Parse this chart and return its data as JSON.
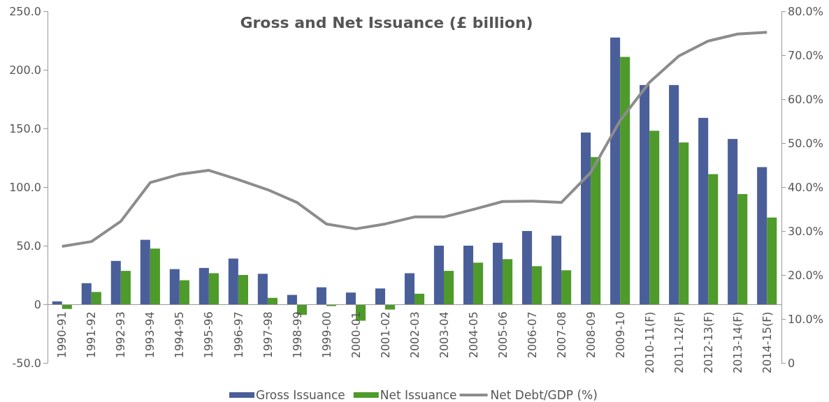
{
  "chart_data": {
    "type": "bar",
    "title": "Gross and Net Issuance (£ billion)",
    "categories": [
      "1990-91",
      "1991-92",
      "1992-93",
      "1993-94",
      "1994-95",
      "1995-96",
      "1996-97",
      "1997-98",
      "1998-99",
      "1999-00",
      "2000-01",
      "2001-02",
      "2002-03",
      "2003-04",
      "2004-05",
      "2005-06",
      "2006-07",
      "2007-08",
      "2008-09",
      "2009-10",
      "2010-11(F)",
      "2011-12(F)",
      "2012-13(F)",
      "2013-14(F)",
      "2014-15(F)"
    ],
    "series": [
      {
        "name": "Gross Issuance",
        "color": "#4a5f9a",
        "values": [
          2.5,
          18,
          37,
          55,
          30,
          31,
          39,
          26,
          8,
          14.5,
          10,
          13.5,
          26.5,
          50,
          50,
          52.5,
          62.5,
          58.5,
          146.5,
          227.5,
          187,
          187,
          159,
          141,
          117
        ]
      },
      {
        "name": "Net Issuance",
        "color": "#4e9a2a",
        "values": [
          -4,
          10.5,
          28.5,
          47.5,
          20.5,
          26.5,
          25,
          5.5,
          -9,
          -1.5,
          -14,
          -4.5,
          9,
          28.5,
          35.5,
          38.5,
          32.5,
          29,
          125.5,
          211,
          148,
          138,
          111,
          94,
          74
        ]
      },
      {
        "name": "Net Debt/GDP (%)",
        "type": "line",
        "axis": "y2",
        "color": "#8c8c8c",
        "values": [
          26.5,
          27.6,
          32.2,
          41,
          42.9,
          43.8,
          41.7,
          39.4,
          36.5,
          31.6,
          30.5,
          31.6,
          33.2,
          33.2,
          34.9,
          36.7,
          36.8,
          36.5,
          43.3,
          55.1,
          63.8,
          69.8,
          73.2,
          74.8,
          75.2
        ]
      }
    ],
    "ylim": [
      -50,
      250
    ],
    "yticks": [
      {
        "value": -50,
        "label": "-50.0"
      },
      {
        "value": 0,
        "label": "0"
      },
      {
        "value": 50,
        "label": "50.0"
      },
      {
        "value": 100,
        "label": "100.0"
      },
      {
        "value": 150,
        "label": "150.0"
      },
      {
        "value": 200,
        "label": "200.0"
      },
      {
        "value": 250,
        "label": "250.0"
      }
    ],
    "y2lim": [
      0,
      80
    ],
    "y2ticks": [
      {
        "value": 0,
        "label": "0"
      },
      {
        "value": 10,
        "label": "10.0%"
      },
      {
        "value": 20,
        "label": "20.0%"
      },
      {
        "value": 30,
        "label": "30.0%"
      },
      {
        "value": 40,
        "label": "40.0%"
      },
      {
        "value": 50,
        "label": "50.0%"
      },
      {
        "value": 60,
        "label": "60.0%"
      },
      {
        "value": 70,
        "label": "70.0%"
      },
      {
        "value": 80,
        "label": "80.0%"
      }
    ],
    "legend": "bottom",
    "marker": "none",
    "line_style": "solid"
  }
}
